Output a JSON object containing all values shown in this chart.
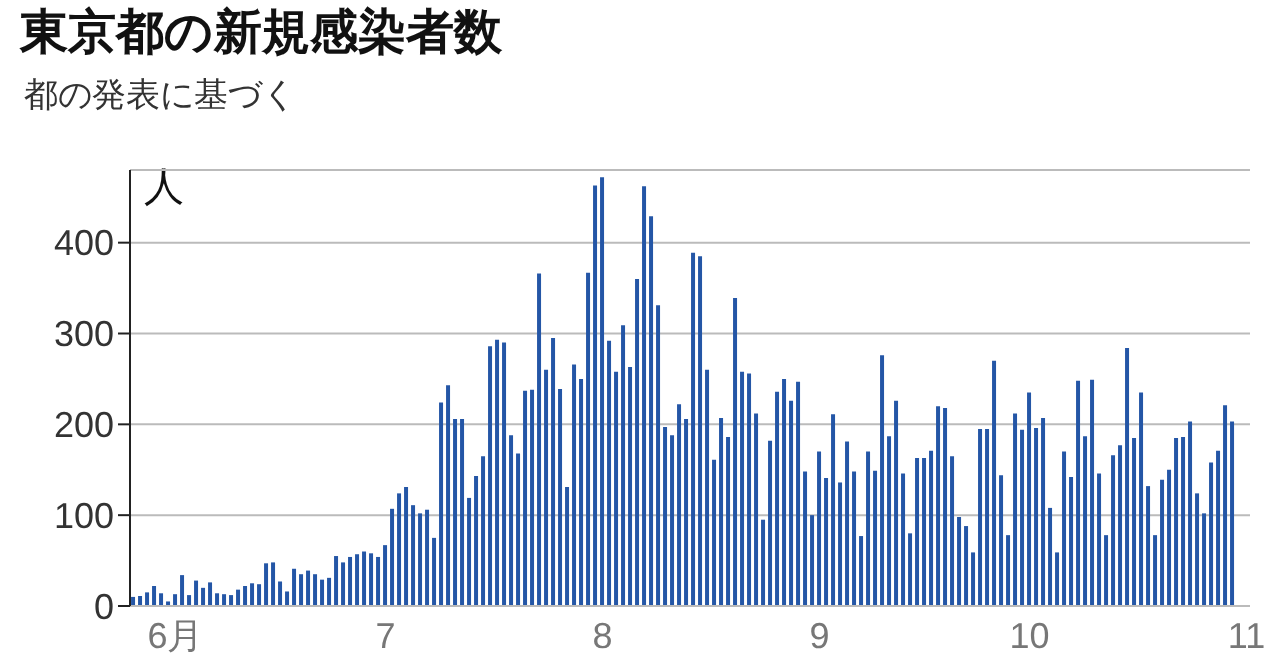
{
  "chart_data": {
    "type": "bar",
    "title": "東京都の新規感染者数",
    "subtitle": "都の発表に基づく",
    "ylabel": "人",
    "categories": [
      null,
      null,
      null,
      null,
      null,
      null,
      "6月",
      null,
      null,
      null,
      null,
      null,
      null,
      null,
      null,
      null,
      null,
      null,
      null,
      null,
      null,
      null,
      null,
      null,
      null,
      null,
      null,
      null,
      null,
      null,
      null,
      null,
      null,
      null,
      null,
      null,
      "7",
      null,
      null,
      null,
      null,
      null,
      null,
      null,
      null,
      null,
      null,
      null,
      null,
      null,
      null,
      null,
      null,
      null,
      null,
      null,
      null,
      null,
      null,
      null,
      null,
      null,
      null,
      null,
      null,
      null,
      null,
      "8",
      null,
      null,
      null,
      null,
      null,
      null,
      null,
      null,
      null,
      null,
      null,
      null,
      null,
      null,
      null,
      null,
      null,
      null,
      null,
      null,
      null,
      null,
      null,
      null,
      null,
      null,
      null,
      null,
      null,
      null,
      "9",
      null,
      null,
      null,
      null,
      null,
      null,
      null,
      null,
      null,
      null,
      null,
      null,
      null,
      null,
      null,
      null,
      null,
      null,
      null,
      null,
      null,
      null,
      null,
      null,
      null,
      null,
      null,
      null,
      null,
      "10",
      null,
      null,
      null,
      null,
      null,
      null,
      null,
      null,
      null,
      null,
      null,
      null,
      null,
      null,
      null,
      null,
      null,
      null,
      null,
      null,
      null,
      null,
      null,
      null,
      null,
      null,
      null,
      null,
      null,
      null,
      "11"
    ],
    "values": [
      10,
      11,
      15,
      22,
      14,
      5,
      13,
      34,
      12,
      28,
      20,
      26,
      14,
      13,
      12,
      18,
      22,
      25,
      24,
      47,
      48,
      27,
      16,
      41,
      35,
      39,
      35,
      29,
      31,
      55,
      48,
      54,
      57,
      60,
      58,
      54,
      67,
      107,
      124,
      131,
      111,
      102,
      106,
      75,
      224,
      243,
      206,
      206,
      119,
      143,
      165,
      286,
      293,
      290,
      188,
      168,
      237,
      238,
      366,
      260,
      295,
      239,
      131,
      266,
      250,
      367,
      463,
      472,
      292,
      258,
      309,
      263,
      360,
      462,
      429,
      331,
      197,
      188,
      222,
      206,
      389,
      385,
      260,
      161,
      207,
      186,
      339,
      258,
      256,
      212,
      95,
      182,
      236,
      250,
      226,
      247,
      148,
      100,
      170,
      141,
      211,
      136,
      181,
      148,
      77,
      170,
      149,
      276,
      187,
      226,
      146,
      80,
      163,
      163,
      171,
      220,
      218,
      165,
      98,
      88,
      59,
      195,
      195,
      270,
      144,
      78,
      212,
      194,
      235,
      196,
      207,
      108,
      59,
      170,
      142,
      248,
      187,
      249,
      146,
      78,
      166,
      177,
      284,
      185,
      235,
      132,
      78,
      139,
      150,
      185,
      186,
      203,
      124,
      102,
      158,
      171,
      221,
      203,
      null,
      null
    ],
    "color": "#2456a6",
    "ylim": [
      0,
      480
    ],
    "yticks": [
      0,
      100,
      200,
      300,
      400
    ],
    "grid": "y"
  }
}
